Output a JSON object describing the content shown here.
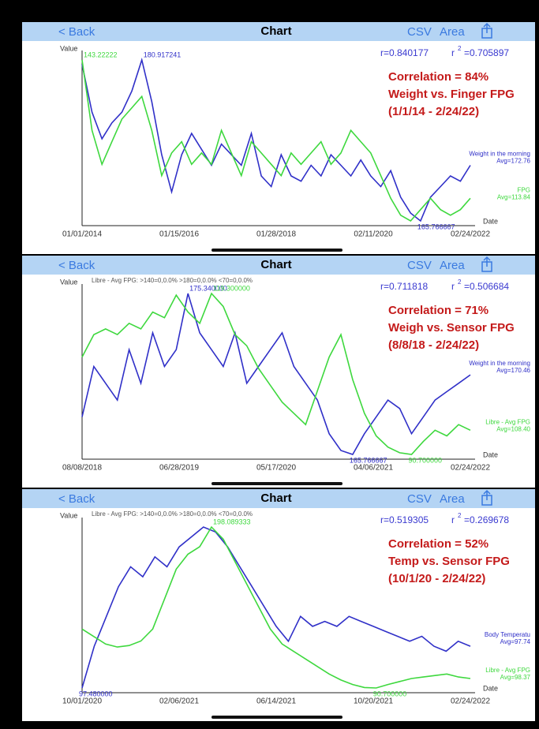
{
  "panels": [
    {
      "nav": {
        "back": "< Back",
        "title": "Chart",
        "csv": "CSV",
        "area": "Area"
      },
      "chart_data": {
        "type": "line",
        "y_label": "Value",
        "x_label": "Date",
        "r": "r=0.840177",
        "r2_symbol": "r",
        "r2_power": "2",
        "r2_value": "=0.705897",
        "annotation": [
          "Correlation = 84%",
          "Weight vs. Finger FPG",
          "(1/1/14 - 2/24/22)"
        ],
        "xticks": [
          "01/01/2014",
          "01/15/2016",
          "01/28/2018",
          "02/11/2020",
          "02/24/2022"
        ],
        "series": [
          {
            "name": "Weight in the morning",
            "avg": "Avg=172.76",
            "color": "#3030c8",
            "peak_label": "180.917241",
            "low_label": "165.766667",
            "values": [
              180.5,
              176,
              173.5,
              175,
              176,
              178,
              180.917241,
              177,
              172,
              168.5,
              172,
              174,
              172.5,
              171,
              173,
              172,
              171,
              174,
              170,
              169,
              172,
              170,
              169.5,
              171,
              170,
              172,
              171,
              170,
              171.5,
              170,
              169,
              170.5,
              168,
              166.5,
              165.766667,
              168,
              169,
              170,
              169.5,
              171
            ]
          },
          {
            "name": "FPG",
            "avg": "Avg=113.84",
            "color": "#3ed83e",
            "peak_label": "143.22222",
            "values": [
              143.22222,
              137,
              134,
              136,
              138,
              139,
              140,
              137,
              133,
              135,
              136,
              134,
              135,
              134,
              137,
              135,
              133,
              136,
              135,
              134,
              133,
              135,
              134,
              135,
              136,
              134,
              135,
              137,
              136,
              135,
              133,
              131,
              129.5,
              129,
              130,
              131,
              130,
              129.5,
              130,
              131
            ]
          }
        ]
      }
    },
    {
      "nav": {
        "back": "< Back",
        "title": "Chart",
        "csv": "CSV",
        "area": "Area"
      },
      "chart_data": {
        "type": "line",
        "y_label": "Value",
        "x_label": "Date",
        "header": "Libre - Avg FPG: >140=0,0.0%  >180=0,0.0%  <70=0,0.0%",
        "r": "r=0.711818",
        "r2_symbol": "r",
        "r2_power": "2",
        "r2_value": "=0.506684",
        "annotation": [
          "Correlation = 71%",
          "Weigh vs. Sensor FPG",
          "(8/8/18 - 2/24/22)"
        ],
        "xticks": [
          "08/08/2018",
          "06/28/2019",
          "05/17/2020",
          "04/06/2021",
          "02/24/2022"
        ],
        "series": [
          {
            "name": "Weight in the morning",
            "avg": "Avg=170.46",
            "color": "#3030c8",
            "peak_label": "175.340000",
            "low_label": "165.766667",
            "values": [
              168,
              171,
              170,
              169,
              172,
              170,
              173,
              171,
              172,
              175.34,
              173,
              172,
              171,
              173,
              170,
              171,
              172,
              173,
              171,
              170,
              169,
              167,
              166,
              165.766667,
              167,
              168,
              169,
              168.5,
              167,
              168,
              169,
              169.5,
              170,
              170.5
            ]
          },
          {
            "name": "Libre - Avg FPG",
            "avg": "Avg=108.40",
            "color": "#3ed83e",
            "peak_label": "119.300000",
            "low_label": "90.700000",
            "values": [
              108,
              112,
              113,
              112,
              114,
              113,
              116,
              115,
              119,
              116,
              114,
              119.3,
              117,
              112,
              110,
              106,
              103,
              100,
              98,
              96,
              102,
              108,
              112,
              104,
              98,
              94,
              92,
              91,
              90.7,
              93,
              95,
              94,
              96,
              95
            ]
          }
        ]
      }
    },
    {
      "nav": {
        "back": "< Back",
        "title": "Chart",
        "csv": "CSV",
        "area": "Area"
      },
      "chart_data": {
        "type": "line",
        "y_label": "Value",
        "x_label": "Date",
        "header": "Libre - Avg FPG: >140=0,0.0%  >180=0,0.0%  <70=0,0.0%",
        "r": "r=0.519305",
        "r2_symbol": "r",
        "r2_power": "2",
        "r2_value": "=0.269678",
        "annotation": [
          "Correlation = 52%",
          "Temp vs. Sensor FPG",
          "(10/1/20 - 2/24/22)"
        ],
        "xticks": [
          "10/01/2020",
          "02/06/2021",
          "06/14/2021",
          "10/20/2021",
          "02/24/2022"
        ],
        "series": [
          {
            "name": "Body Temperatu",
            "avg": "Avg=97.74",
            "color": "#3030c8",
            "low_label": "97.480000",
            "values": [
              97.48,
              97.9,
              98.2,
              98.5,
              98.7,
              98.6,
              98.8,
              98.7,
              98.9,
              99.0,
              99.1,
              99.05,
              98.9,
              98.7,
              98.5,
              98.3,
              98.1,
              97.95,
              98.2,
              98.1,
              98.15,
              98.1,
              98.2,
              98.15,
              98.1,
              98.05,
              98.0,
              97.95,
              98.0,
              97.9,
              97.85,
              97.95,
              97.9
            ]
          },
          {
            "name": "Libre - Avg FPG",
            "avg": "Avg=98.37",
            "color": "#3ed83e",
            "peak_label": "198.089333",
            "low_label": "90.700000",
            "values": [
              130,
              125,
              120,
              118,
              119,
              122,
              130,
              150,
              170,
              180,
              185,
              198.089333,
              190,
              175,
              160,
              145,
              130,
              120,
              115,
              110,
              105,
              100,
              96,
              93,
              91,
              90.7,
              93,
              95,
              97,
              98,
              99,
              100,
              98,
              97
            ]
          }
        ]
      }
    }
  ]
}
